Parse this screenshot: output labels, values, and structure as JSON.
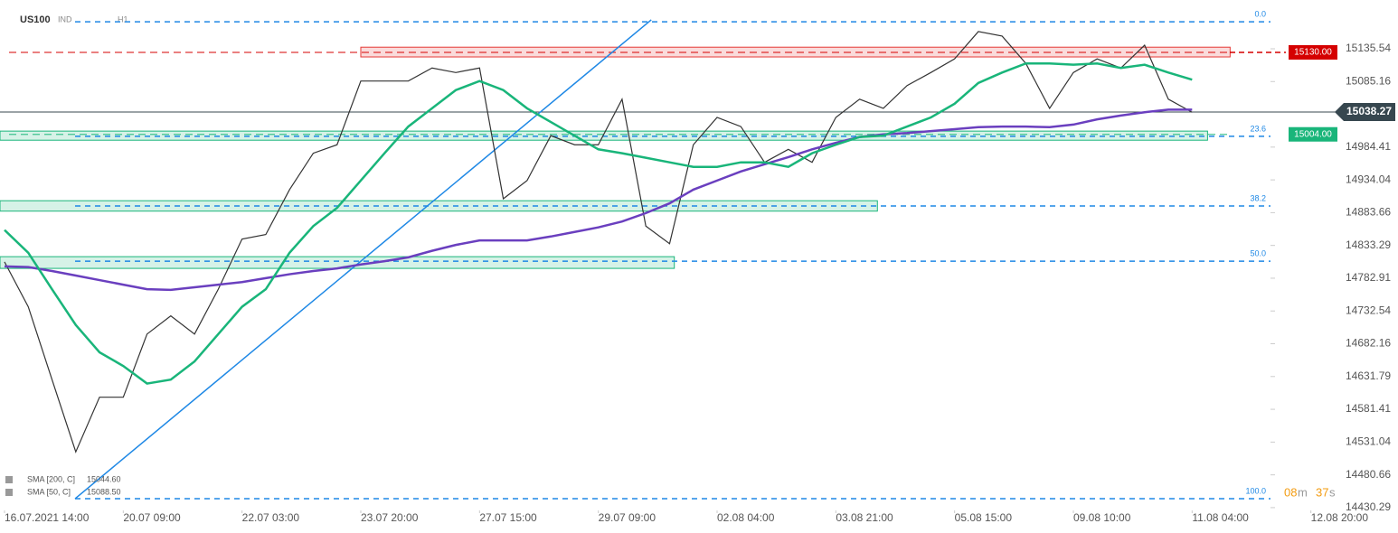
{
  "chart_data": {
    "type": "price-chart",
    "symbol": "US100",
    "market": "IND",
    "timeframe": "H1",
    "x": [
      0,
      1,
      2,
      3,
      4,
      5,
      6,
      7,
      8,
      9,
      10,
      11,
      12,
      13,
      14,
      15,
      16,
      17,
      18,
      19,
      20,
      21,
      22,
      23,
      24,
      25,
      26,
      27,
      28,
      29,
      30,
      31,
      32,
      33,
      34,
      35,
      36,
      37,
      38,
      39,
      40,
      41,
      42,
      43,
      44,
      45,
      46,
      47,
      48,
      49,
      50
    ],
    "xlim": [
      -0.19,
      53.3
    ],
    "xticks": [
      {
        "value": 0,
        "label": "16.07.2021 14:00"
      },
      {
        "value": 5,
        "label": "20.07 09:00"
      },
      {
        "value": 10,
        "label": "22.07 03:00"
      },
      {
        "value": 15,
        "label": "23.07 20:00"
      },
      {
        "value": 20,
        "label": "27.07 15:00"
      },
      {
        "value": 25,
        "label": "29.07 09:00"
      },
      {
        "value": 30,
        "label": "02.08 04:00"
      },
      {
        "value": 35,
        "label": "03.08 21:00"
      },
      {
        "value": 40,
        "label": "05.08 15:00"
      },
      {
        "value": 45,
        "label": "09.08 10:00"
      },
      {
        "value": 50,
        "label": "11.08 04:00"
      },
      {
        "value": 55,
        "label": "12.08 20:00"
      }
    ],
    "ylim": [
      14426,
      15210.5
    ],
    "yticks": [
      15135.54,
      15085.16,
      14984.41,
      14934.04,
      14883.66,
      14833.29,
      14782.91,
      14732.54,
      14682.16,
      14631.79,
      14581.41,
      14531.04,
      14480.66,
      14430.29
    ],
    "series": [
      {
        "name": "US100",
        "color": "#333333",
        "values": [
          14808,
          14739,
          14627,
          14516,
          14600,
          14600,
          14697,
          14725,
          14697,
          14766,
          14843,
          14850,
          14919,
          14975,
          14988,
          15086,
          15086,
          15086,
          15106,
          15099,
          15106,
          14905,
          14933,
          15002,
          14988,
          14988,
          15058,
          14863,
          14836,
          14988,
          15030,
          15016,
          14961,
          14981,
          14961,
          15030,
          15058,
          15044,
          15079,
          15099,
          15120,
          15162,
          15155,
          15113,
          15044,
          15099,
          15120,
          15106,
          15141,
          15058,
          15038
        ]
      },
      {
        "name": "SMA [200, C]",
        "legend_value": "15044.60",
        "color": "#6a3fbf",
        "values": [
          14801,
          14800,
          14794,
          14787,
          14780,
          14773,
          14766,
          14765,
          14769,
          14773,
          14777,
          14783,
          14789,
          14794,
          14798,
          14804,
          14809,
          14815,
          14825,
          14834,
          14841,
          14841,
          14841,
          14847,
          14854,
          14861,
          14870,
          14883,
          14898,
          14919,
          14933,
          14947,
          14958,
          14969,
          14981,
          14991,
          15000,
          15004,
          15006,
          15009,
          15012,
          15015,
          15016,
          15016,
          15015,
          15019,
          15027,
          15033,
          15038,
          15042,
          15042
        ]
      },
      {
        "name": "SMA [50, C]",
        "legend_value": "15088.50",
        "color": "#19b57a",
        "values": [
          14857,
          14822,
          14766,
          14711,
          14669,
          14648,
          14621,
          14627,
          14655,
          14697,
          14739,
          14766,
          14822,
          14863,
          14891,
          14933,
          14975,
          15016,
          15044,
          15072,
          15086,
          15072,
          15044,
          15023,
          15002,
          14981,
          14975,
          14968,
          14961,
          14954,
          14954,
          14961,
          14961,
          14954,
          14975,
          14988,
          15000,
          15002,
          15016,
          15030,
          15051,
          15083,
          15099,
          15113,
          15113,
          15111,
          15113,
          15106,
          15111,
          15099,
          15088
        ]
      }
    ],
    "trendline": {
      "color": "#1e88e5",
      "x": [
        2.97,
        27.23
      ],
      "values": [
        14444,
        15180
      ]
    },
    "fib_levels": [
      {
        "value": 15177,
        "label": "0.0"
      },
      {
        "value": 15001,
        "label": "23.6"
      },
      {
        "value": 14894,
        "label": "38.2"
      },
      {
        "value": 14809,
        "label": "50.0"
      },
      {
        "value": 14444,
        "label": "100.0"
      }
    ],
    "zones": [
      {
        "color": "#e53935",
        "range": [
          15123,
          15138
        ],
        "x_range": [
          15.0,
          51.6
        ]
      },
      {
        "color": "#19b57a",
        "range": [
          14995,
          15009
        ],
        "x_range": [
          -0.19,
          50.65
        ]
      },
      {
        "color": "#19b57a",
        "range": [
          14886,
          14902
        ],
        "x_range": [
          -0.19,
          36.75
        ]
      },
      {
        "color": "#19b57a",
        "range": [
          14798,
          14816
        ],
        "x_range": [
          -0.19,
          28.2
        ]
      }
    ],
    "level_labels": [
      {
        "value": 15130,
        "label": "15130.00",
        "color": "#d50000"
      },
      {
        "value": 15004,
        "label": "15004.00",
        "color": "#19b57a"
      }
    ],
    "current_price": {
      "value": 15038.27,
      "label": "15038.27"
    },
    "countdown": {
      "minutes": "08",
      "minutes_unit": "m",
      "seconds": "37",
      "seconds_unit": "s"
    }
  }
}
